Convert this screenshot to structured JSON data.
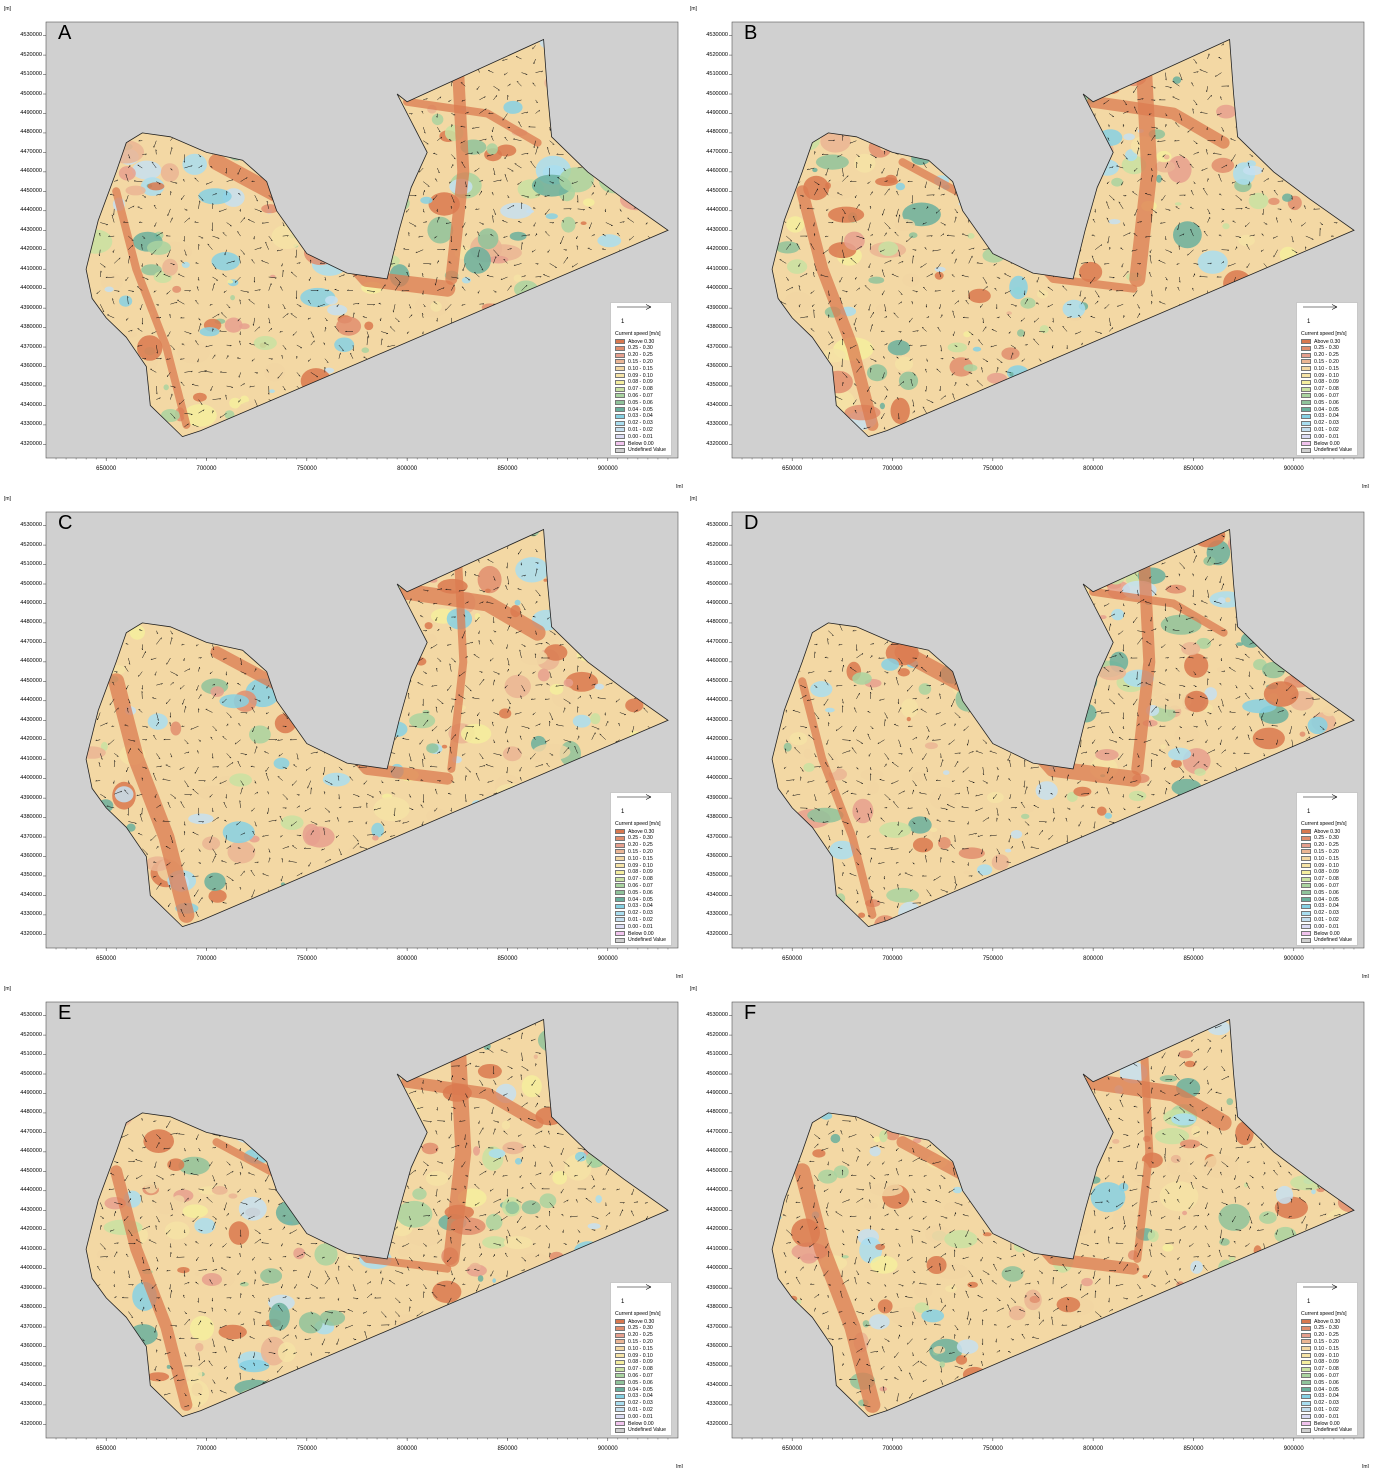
{
  "figure": {
    "axis_unit": "[m]",
    "y_ticks": [
      "4530000",
      "4520000",
      "4510000",
      "4500000",
      "4490000",
      "4480000",
      "4470000",
      "4460000",
      "4450000",
      "4440000",
      "4430000",
      "4420000",
      "4410000",
      "4400000",
      "4390000",
      "4380000",
      "4370000",
      "4360000",
      "4350000",
      "4340000",
      "4330000",
      "4320000"
    ],
    "x_ticks": [
      "650000",
      "700000",
      "750000",
      "800000",
      "850000",
      "900000"
    ],
    "legend": {
      "scale_value": "1",
      "title": "Current speed [m/s]",
      "classes": [
        {
          "label": "Above 0.30",
          "color": "#d9794f"
        },
        {
          "label": "0.25 - 0.30",
          "color": "#e08e6e"
        },
        {
          "label": "0.20 - 0.25",
          "color": "#e6a08e"
        },
        {
          "label": "0.15 - 0.20",
          "color": "#eab594"
        },
        {
          "label": "0.10 - 0.15",
          "color": "#f1d6a3"
        },
        {
          "label": "0.09 - 0.10",
          "color": "#f5e3a6"
        },
        {
          "label": "0.08 - 0.09",
          "color": "#f4ee9e"
        },
        {
          "label": "0.07 - 0.08",
          "color": "#c8e2a2"
        },
        {
          "label": "0.06 - 0.07",
          "color": "#a9d4a0"
        },
        {
          "label": "0.05 - 0.06",
          "color": "#8fc39b"
        },
        {
          "label": "0.04 - 0.05",
          "color": "#6ab09d"
        },
        {
          "label": "0.03 - 0.04",
          "color": "#86d1e4"
        },
        {
          "label": "0.02 - 0.03",
          "color": "#a9def0"
        },
        {
          "label": "0.01 - 0.02",
          "color": "#c5e0f1"
        },
        {
          "label": "0.00 - 0.01",
          "color": "#dcdcf5"
        },
        {
          "label": "Below 0.00",
          "color": "#f2c4ee"
        },
        {
          "label": "Undefined Value",
          "color": "#d0d0d0"
        }
      ]
    },
    "panels": [
      {
        "letter": "A"
      },
      {
        "letter": "B"
      },
      {
        "letter": "C"
      },
      {
        "letter": "D"
      },
      {
        "letter": "E"
      },
      {
        "letter": "F"
      }
    ]
  }
}
